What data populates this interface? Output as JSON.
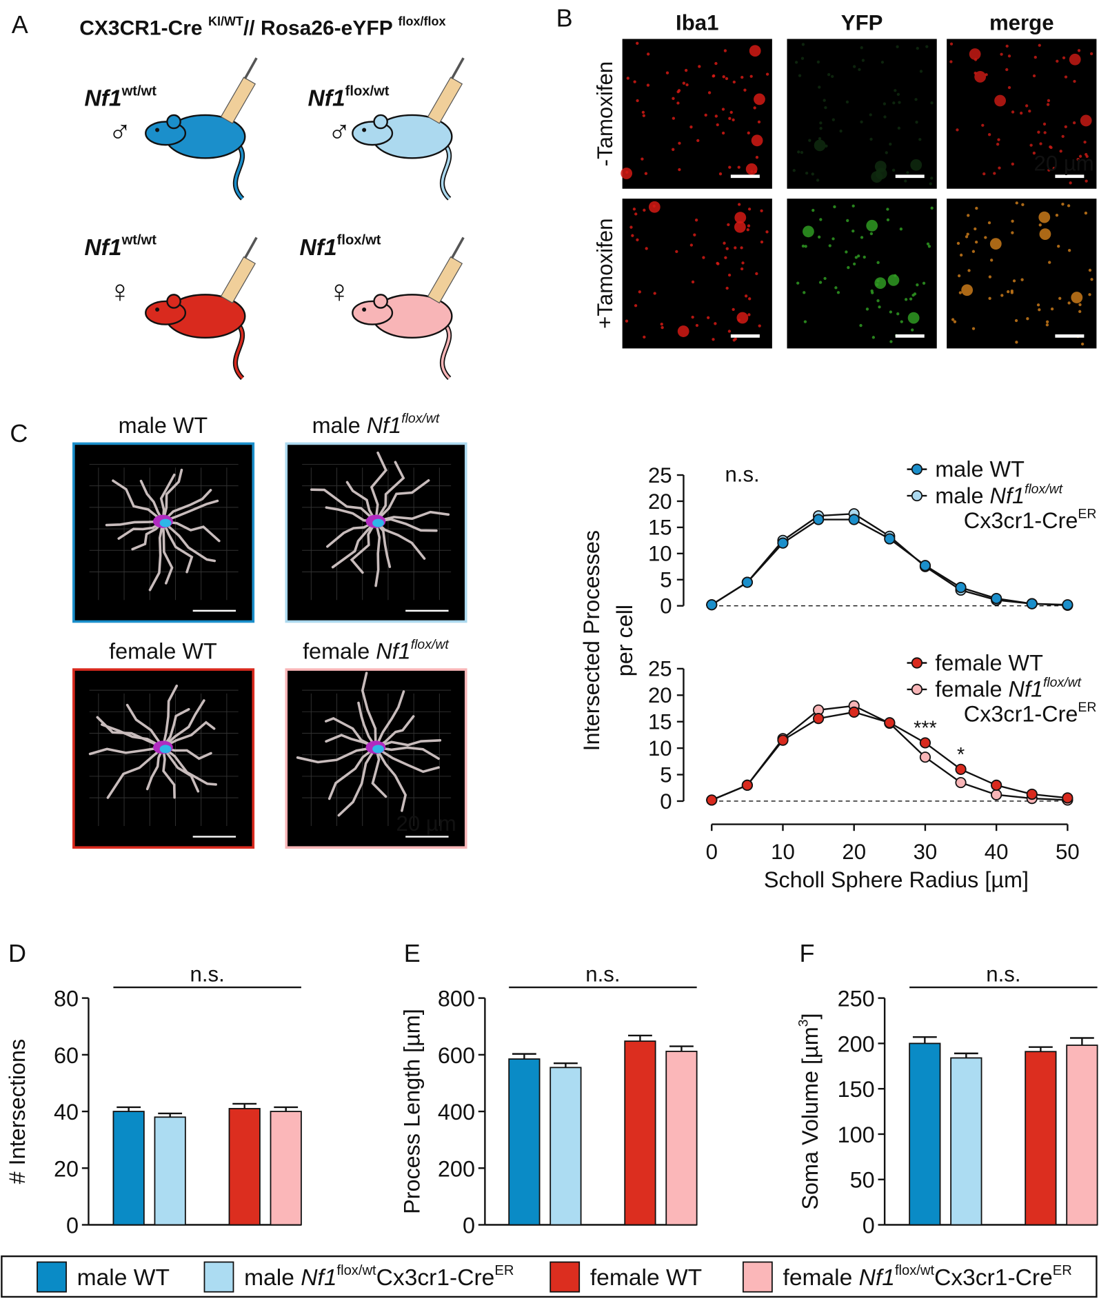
{
  "panels": {
    "A": {
      "letter": "A",
      "title": "CX3CR1-Cre ",
      "title_sup": "KI/WT",
      "title_2": "// Rosa26-eYFP ",
      "title_2_sup": "flox/flox",
      "mice": [
        {
          "gene": "Nf1",
          "genotype": "wt/wt",
          "sex": "♂",
          "color": "#1b8fcb"
        },
        {
          "gene": "Nf1",
          "genotype": "flox/wt",
          "sex": "♂",
          "color": "#acd9ef"
        },
        {
          "gene": "Nf1",
          "genotype": "wt/wt",
          "sex": "♀",
          "color": "#d92a1e"
        },
        {
          "gene": "Nf1",
          "genotype": "flox/wt",
          "sex": "♀",
          "color": "#f8b5b7"
        }
      ]
    },
    "B": {
      "letter": "B",
      "columns": [
        {
          "label": "Iba1",
          "color": "#e8141b"
        },
        {
          "label": "YFP",
          "color": "#2bc41f"
        },
        {
          "label": "merge",
          "color": "#999999"
        }
      ],
      "rows": [
        "-Tamoxifen",
        "+Tamoxifen"
      ],
      "scale_bar": "20 µm"
    },
    "C": {
      "letter": "C",
      "cells": [
        {
          "label": "male WT",
          "color": "#1b8fcb"
        },
        {
          "label": "male ",
          "gene": "Nf1",
          "genotype": "flox/wt",
          "color": "#acd9ef"
        },
        {
          "label": "female WT",
          "color": "#d92a1e"
        },
        {
          "label": "female ",
          "gene": "Nf1",
          "genotype": "flox/wt",
          "color": "#f8b5b7"
        }
      ],
      "scale_bar": "20 µm"
    },
    "D": {
      "letter": "D"
    },
    "E": {
      "letter": "E"
    },
    "F": {
      "letter": "F"
    }
  },
  "chart_data": [
    {
      "type": "line",
      "annotation": "n.s.",
      "ylabel": [
        "Intersected Processes",
        "per cell"
      ],
      "x": [
        0,
        5,
        10,
        15,
        20,
        25,
        30,
        35,
        40,
        45,
        50
      ],
      "xlim": [
        0,
        50
      ],
      "ylim": [
        0,
        25
      ],
      "yticks": [
        0,
        5,
        10,
        15,
        20,
        25
      ],
      "series": [
        {
          "name": "male WT",
          "color": "#1b8fcb",
          "values": [
            0.2,
            4.5,
            12,
            16.5,
            16.5,
            12.8,
            7.7,
            3.5,
            1.4,
            0.4,
            0.2
          ]
        },
        {
          "name": "male ",
          "gene": "Nf1",
          "genotype": "flox/wt",
          "driver": "Cx3cr1-Cre",
          "driver_sup": "ER",
          "color": "#acd9ef",
          "values": [
            0.2,
            4.5,
            12.5,
            17.2,
            17.6,
            13.3,
            7.5,
            3,
            1.1,
            0.4,
            0.1
          ]
        }
      ]
    },
    {
      "type": "line",
      "xlabel": "Scholl Sphere Radius [µm]",
      "x": [
        0,
        5,
        10,
        15,
        20,
        25,
        30,
        35,
        40,
        45,
        50
      ],
      "xlim": [
        0,
        50
      ],
      "xticks": [
        0,
        10,
        20,
        30,
        40,
        50
      ],
      "ylim": [
        0,
        25
      ],
      "yticks": [
        0,
        5,
        10,
        15,
        20,
        25
      ],
      "annotations": [
        {
          "text": "***",
          "x": 30,
          "y": 11
        },
        {
          "text": "*",
          "x": 35,
          "y": 6
        }
      ],
      "series": [
        {
          "name": "female WT",
          "color": "#d92a1e",
          "values": [
            0.2,
            3,
            11.5,
            15.6,
            16.8,
            14.8,
            11,
            6,
            3,
            1.3,
            0.6
          ]
        },
        {
          "name": "female ",
          "gene": "Nf1",
          "genotype": "flox/wt",
          "driver": "Cx3cr1-Cre",
          "driver_sup": "ER",
          "color": "#f8b5b7",
          "values": [
            0.2,
            3,
            11.8,
            17.2,
            18,
            14.7,
            8.3,
            3.5,
            1.2,
            0.5,
            0.2
          ]
        }
      ]
    },
    {
      "type": "bar",
      "annotation": "n.s.",
      "ylabel": "# Intersections",
      "categories": [
        null,
        null,
        null,
        null
      ],
      "values": [
        40,
        38,
        41,
        40
      ],
      "errors": [
        1.5,
        1.3,
        1.7,
        1.5
      ],
      "colors": [
        "#0a8bc6",
        "#acdcf2",
        "#dc2e1f",
        "#fbb7b9"
      ],
      "ylim": [
        0,
        80
      ],
      "yticks": [
        0,
        20,
        40,
        60,
        80
      ]
    },
    {
      "type": "bar",
      "annotation": "n.s.",
      "ylabel": "Process Length [µm]",
      "categories": [
        null,
        null,
        null,
        null
      ],
      "values": [
        585,
        555,
        648,
        612
      ],
      "errors": [
        18,
        15,
        20,
        18
      ],
      "colors": [
        "#0a8bc6",
        "#acdcf2",
        "#dc2e1f",
        "#fbb7b9"
      ],
      "ylim": [
        0,
        800
      ],
      "yticks": [
        0,
        200,
        400,
        600,
        800
      ]
    },
    {
      "type": "bar",
      "annotation": "n.s.",
      "ylabel": "Soma Volume [µm",
      "ylabel_sup": "3",
      "ylabel_end": "]",
      "categories": [
        null,
        null,
        null,
        null
      ],
      "values": [
        200,
        184,
        191,
        198
      ],
      "errors": [
        7,
        5,
        5,
        8
      ],
      "colors": [
        "#0a8bc6",
        "#acdcf2",
        "#dc2e1f",
        "#fbb7b9"
      ],
      "ylim": [
        0,
        250
      ],
      "yticks": [
        0,
        50,
        100,
        150,
        200,
        250
      ]
    }
  ],
  "legend": [
    {
      "name": "male WT",
      "color": "#0a8bc6"
    },
    {
      "name": "male ",
      "gene": "Nf1",
      "genotype": "flox/wt",
      "driver": "Cx3cr1-Cre",
      "driver_sup": "ER",
      "color": "#acdcf2"
    },
    {
      "name": "female WT",
      "color": "#dc2e1f"
    },
    {
      "name": "female ",
      "gene": "Nf1",
      "genotype": "flox/wt",
      "driver": "Cx3cr1-Cre",
      "driver_sup": "ER",
      "color": "#fbb7b9"
    }
  ]
}
